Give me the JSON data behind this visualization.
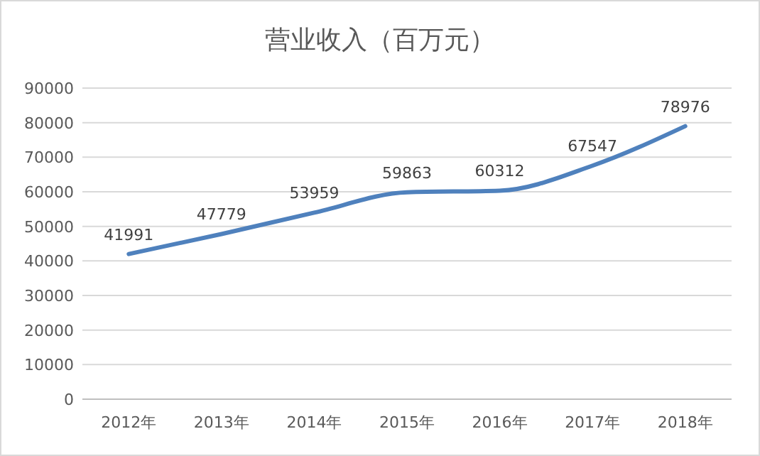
{
  "chart_data": {
    "type": "line",
    "title": "营业收入（百万元）",
    "categories": [
      "2012年",
      "2013年",
      "2014年",
      "2015年",
      "2016年",
      "2017年",
      "2018年"
    ],
    "series": [
      {
        "color": "#4f81bd",
        "values": [
          41991,
          47779,
          53959,
          59863,
          60312,
          67547,
          78976
        ]
      }
    ],
    "ylim": [
      0,
      90000
    ],
    "yticks": [
      0,
      10000,
      20000,
      30000,
      40000,
      50000,
      60000,
      70000,
      80000,
      90000
    ],
    "grid": "y",
    "data_labels": true,
    "marker": "none",
    "line_style": "solid"
  }
}
